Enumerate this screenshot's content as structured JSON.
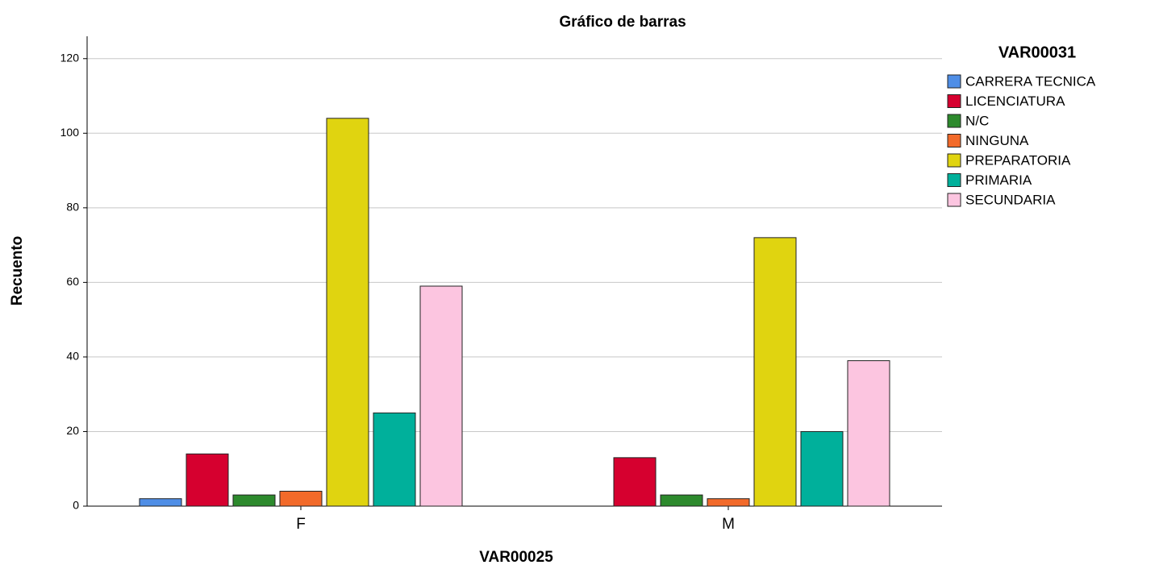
{
  "chart_data": {
    "type": "bar",
    "title": "Gráfico de barras",
    "x_label": "VAR00025",
    "y_label": "Recuento",
    "legend_title": "VAR00031",
    "categories": [
      "F",
      "M"
    ],
    "series": [
      {
        "name": "CARRERA TECNICA",
        "color": "#4f8ee6",
        "values": [
          2,
          0
        ]
      },
      {
        "name": "LICENCIATURA",
        "color": "#d6002f",
        "values": [
          14,
          13
        ]
      },
      {
        "name": "N/C",
        "color": "#2d8a2d",
        "values": [
          3,
          3
        ]
      },
      {
        "name": "NINGUNA",
        "color": "#f26a2a",
        "values": [
          4,
          2
        ]
      },
      {
        "name": "PREPARATORIA",
        "color": "#e0d410",
        "values": [
          104,
          72
        ]
      },
      {
        "name": "PRIMARIA",
        "color": "#00b09b",
        "values": [
          25,
          20
        ]
      },
      {
        "name": "SECUNDARIA",
        "color": "#fcc5e0",
        "values": [
          59,
          39
        ]
      }
    ],
    "ylim": [
      0,
      126
    ],
    "yticks": [
      0,
      20,
      40,
      60,
      80,
      100,
      120
    ],
    "grid": true,
    "legend": "right"
  }
}
